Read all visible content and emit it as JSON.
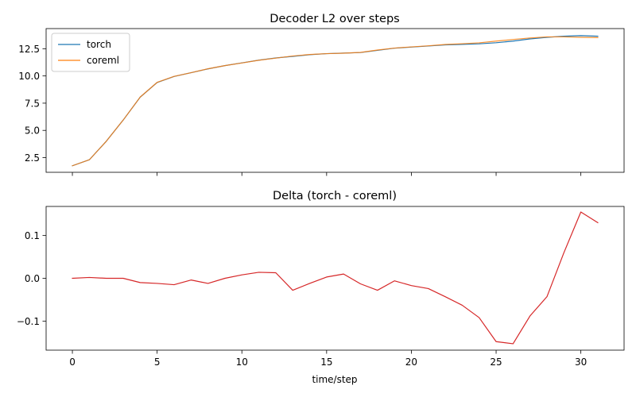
{
  "chart_data": [
    {
      "type": "line",
      "title": "Decoder L2 over steps",
      "xlabel": "",
      "ylabel": "",
      "xlim": [
        -1.55,
        32.55
      ],
      "ylim": [
        1.15,
        14.35
      ],
      "xticks": [
        0,
        5,
        10,
        15,
        20,
        25,
        30
      ],
      "xtick_labels_visible": false,
      "yticks": [
        2.5,
        5.0,
        7.5,
        10.0,
        12.5
      ],
      "ytick_labels": [
        "2.5",
        "5.0",
        "7.5",
        "10.0",
        "12.5"
      ],
      "grid": false,
      "legend_position": "upper-left",
      "x": [
        0,
        1,
        2,
        3,
        4,
        5,
        6,
        7,
        8,
        9,
        10,
        11,
        12,
        13,
        14,
        15,
        16,
        17,
        18,
        19,
        20,
        21,
        22,
        23,
        24,
        25,
        26,
        27,
        28,
        29,
        30,
        31
      ],
      "series": [
        {
          "name": "torch",
          "color": "#1f77b4",
          "values": [
            1.75,
            2.3,
            4.0,
            5.95,
            8.05,
            9.4,
            9.95,
            10.3,
            10.65,
            10.95,
            11.2,
            11.45,
            11.65,
            11.8,
            11.95,
            12.05,
            12.1,
            12.15,
            12.35,
            12.55,
            12.65,
            12.75,
            12.85,
            12.9,
            12.95,
            13.05,
            13.2,
            13.4,
            13.55,
            13.65,
            13.7,
            13.65
          ]
        },
        {
          "name": "coreml",
          "color": "#ff7f0e",
          "values": [
            1.75,
            2.3,
            4.0,
            5.95,
            8.06,
            9.41,
            9.96,
            10.3,
            10.66,
            10.95,
            11.19,
            11.44,
            11.64,
            11.83,
            11.97,
            12.05,
            12.09,
            12.16,
            12.38,
            12.56,
            12.67,
            12.77,
            12.89,
            12.96,
            13.04,
            13.2,
            13.35,
            13.49,
            13.59,
            13.59,
            13.55,
            13.52
          ]
        }
      ]
    },
    {
      "type": "line",
      "title": "Delta (torch - coreml)",
      "xlabel": "time/step",
      "ylabel": "",
      "xlim": [
        -1.55,
        32.55
      ],
      "ylim": [
        -0.168,
        0.168
      ],
      "xticks": [
        0,
        5,
        10,
        15,
        20,
        25,
        30
      ],
      "xtick_labels": [
        "0",
        "5",
        "10",
        "15",
        "20",
        "25",
        "30"
      ],
      "yticks": [
        -0.1,
        0.0,
        0.1
      ],
      "ytick_labels": [
        "−0.1",
        "0.0",
        "0.1"
      ],
      "grid": false,
      "x": [
        0,
        1,
        2,
        3,
        4,
        5,
        6,
        7,
        8,
        9,
        10,
        11,
        12,
        13,
        14,
        15,
        16,
        17,
        18,
        19,
        20,
        21,
        22,
        23,
        24,
        25,
        26,
        27,
        28,
        29,
        30,
        31
      ],
      "series": [
        {
          "color": "#d62728",
          "values": [
            0.0,
            0.002,
            0.0,
            0.0,
            -0.01,
            -0.012,
            -0.015,
            -0.004,
            -0.012,
            0.0,
            0.008,
            0.014,
            0.013,
            -0.028,
            -0.012,
            0.003,
            0.01,
            -0.013,
            -0.028,
            -0.006,
            -0.017,
            -0.024,
            -0.043,
            -0.063,
            -0.092,
            -0.148,
            -0.153,
            -0.088,
            -0.043,
            0.06,
            0.155,
            0.13
          ]
        }
      ]
    }
  ]
}
